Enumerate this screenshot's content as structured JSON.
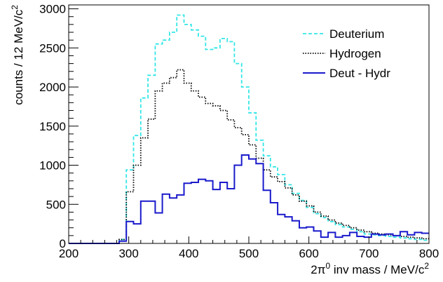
{
  "chart_data": {
    "type": "line",
    "step": true,
    "xlabel_parts": [
      "2π",
      "0",
      " inv mass / MeV/c",
      "2"
    ],
    "ylabel_parts": [
      "counts / 12 MeV/c",
      "2"
    ],
    "xlim": [
      200,
      800
    ],
    "ylim": [
      0,
      3050
    ],
    "xticks": [
      200,
      300,
      400,
      500,
      600,
      700,
      800
    ],
    "xtick_labels": [
      "200",
      "300",
      "400",
      "500",
      "600",
      "700",
      "800"
    ],
    "yticks": [
      0,
      500,
      1000,
      1500,
      2000,
      2500,
      3000
    ],
    "ytick_labels": [
      "0",
      "500",
      "1000",
      "1500",
      "2000",
      "2500",
      "3000"
    ],
    "grid": false,
    "legend_position": "top-right",
    "bin_width": 12,
    "x_start": 200,
    "series": [
      {
        "name": "Deuterium",
        "color": "#33e6e6",
        "style": "dashed",
        "values": [
          0,
          0,
          0,
          0,
          0,
          0,
          0,
          50,
          940,
          1380,
          1860,
          2150,
          2550,
          2600,
          2700,
          2920,
          2800,
          2730,
          2650,
          2480,
          2500,
          2620,
          2580,
          2300,
          2000,
          1670,
          1320,
          1120,
          980,
          880,
          750,
          640,
          550,
          460,
          380,
          330,
          280,
          240,
          210,
          180,
          150,
          120,
          110,
          100,
          90,
          80,
          70,
          60,
          50,
          40
        ]
      },
      {
        "name": "Hydrogen",
        "color": "#000000",
        "style": "dotted",
        "values": [
          0,
          0,
          0,
          0,
          0,
          0,
          0,
          50,
          660,
          1000,
          1350,
          1590,
          1950,
          2050,
          2120,
          2220,
          2050,
          1950,
          1870,
          1790,
          1760,
          1700,
          1580,
          1480,
          1390,
          1260,
          1090,
          940,
          850,
          790,
          710,
          620,
          540,
          480,
          400,
          350,
          300,
          260,
          230,
          200,
          170,
          150,
          130,
          120,
          110,
          100,
          90,
          80,
          70,
          60
        ]
      },
      {
        "name": "Deut - Hydr",
        "color": "#1a1acc",
        "style": "solid",
        "values": [
          0,
          0,
          0,
          0,
          0,
          0,
          0,
          30,
          280,
          250,
          540,
          540,
          390,
          630,
          580,
          620,
          770,
          780,
          820,
          800,
          690,
          780,
          700,
          1000,
          1130,
          1080,
          1020,
          680,
          520,
          370,
          340,
          290,
          200,
          210,
          160,
          80,
          140,
          80,
          100,
          140,
          90,
          80,
          120,
          110,
          120,
          100,
          150,
          110,
          140,
          130
        ]
      }
    ]
  }
}
